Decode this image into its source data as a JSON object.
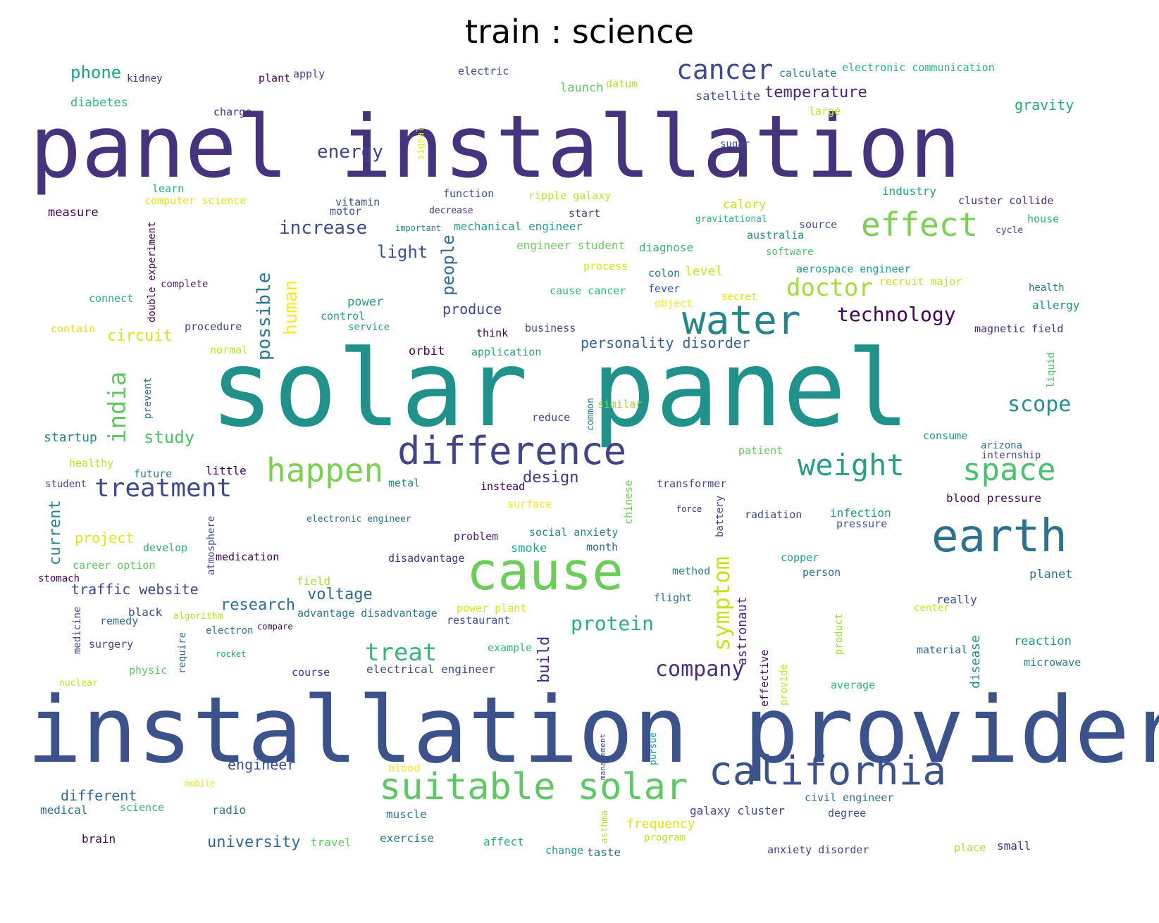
{
  "title": "train : science",
  "palette": "viridis",
  "words": [
    {
      "text": "solar panel",
      "color": "#21918c",
      "size": "xl"
    },
    {
      "text": "installation provider",
      "color": "#3b528b",
      "size": "xl"
    },
    {
      "text": "panel installation",
      "color": "#46337e",
      "size": "xl"
    },
    {
      "text": "cause",
      "color": "#6ccd5a",
      "size": "l"
    },
    {
      "text": "earth",
      "color": "#2c718e",
      "size": "l"
    },
    {
      "text": "water",
      "color": "#25858e",
      "size": "l"
    },
    {
      "text": "california",
      "color": "#3b528b",
      "size": "l"
    },
    {
      "text": "difference",
      "color": "#414487",
      "size": "m"
    },
    {
      "text": "suitable solar",
      "color": "#5ec962",
      "size": "m"
    },
    {
      "text": "happen",
      "color": "#7ad151",
      "size": "m"
    },
    {
      "text": "effect",
      "color": "#7ad151",
      "size": "m"
    },
    {
      "text": "weight",
      "color": "#2a9d8a",
      "size": "m"
    },
    {
      "text": "space",
      "color": "#4ac16d",
      "size": "m"
    },
    {
      "text": "cancer",
      "color": "#3e4a89",
      "size": "m"
    },
    {
      "text": "treatment",
      "color": "#3e4a89",
      "size": "m"
    },
    {
      "text": "india",
      "color": "#5ec962",
      "size": "m"
    },
    {
      "text": "doctor",
      "color": "#a5db36",
      "size": "m"
    },
    {
      "text": "treat",
      "color": "#35b779",
      "size": "m"
    },
    {
      "text": "symptom",
      "color": "#c8e020",
      "size": "m"
    },
    {
      "text": "protein",
      "color": "#29af7f",
      "size": "m"
    },
    {
      "text": "company",
      "color": "#472d7b",
      "size": "m"
    },
    {
      "text": "scope",
      "color": "#218f8d",
      "size": "m"
    },
    {
      "text": "technology",
      "color": "#440154",
      "size": "m"
    },
    {
      "text": "energy",
      "color": "#404588",
      "size": "s"
    },
    {
      "text": "increase",
      "color": "#3e4c8a",
      "size": "s"
    },
    {
      "text": "possible",
      "color": "#2a788e",
      "size": "s"
    },
    {
      "text": "human",
      "color": "#fde725",
      "size": "s"
    },
    {
      "text": "people",
      "color": "#2e6e8e",
      "size": "s"
    },
    {
      "text": "light",
      "color": "#3b528b",
      "size": "s"
    },
    {
      "text": "temperature",
      "color": "#482576",
      "size": "s"
    },
    {
      "text": "phone",
      "color": "#1f9e89",
      "size": "s"
    },
    {
      "text": "gravity",
      "color": "#22a884",
      "size": "s"
    },
    {
      "text": "personality disorder",
      "color": "#33638d",
      "size": "s"
    },
    {
      "text": "produce",
      "color": "#3e4989",
      "size": "s"
    },
    {
      "text": "circuit",
      "color": "#dde318",
      "size": "s"
    },
    {
      "text": "study",
      "color": "#4ac16d",
      "size": "s"
    },
    {
      "text": "design",
      "color": "#46327e",
      "size": "s"
    },
    {
      "text": "research",
      "color": "#2c728e",
      "size": "s"
    },
    {
      "text": "voltage",
      "color": "#2f6b8e",
      "size": "s"
    },
    {
      "text": "build",
      "color": "#482979",
      "size": "s"
    },
    {
      "text": "astronaut",
      "color": "#472a7a",
      "size": "s"
    },
    {
      "text": "university",
      "color": "#31688e",
      "size": "s"
    },
    {
      "text": "engineer",
      "color": "#3a538b",
      "size": "s"
    },
    {
      "text": "different",
      "color": "#31688e",
      "size": "s"
    },
    {
      "text": "current",
      "color": "#26828e",
      "size": "s"
    },
    {
      "text": "project",
      "color": "#e5e419",
      "size": "s"
    },
    {
      "text": "traffic website",
      "color": "#3e4989",
      "size": "s"
    },
    {
      "text": "disease",
      "color": "#238a8d",
      "size": "s"
    },
    {
      "text": "frequency",
      "color": "#dde318",
      "size": "s"
    },
    {
      "text": "kidney",
      "color": "#46327e",
      "size": "xs"
    },
    {
      "text": "plant",
      "color": "#440154",
      "size": "xs"
    },
    {
      "text": "apply",
      "color": "#414487",
      "size": "xs"
    },
    {
      "text": "electric",
      "color": "#3b528b",
      "size": "xs"
    },
    {
      "text": "calculate",
      "color": "#26828e",
      "size": "xs"
    },
    {
      "text": "electronic communication",
      "color": "#29af7f",
      "size": "xs"
    },
    {
      "text": "launch",
      "color": "#5ec962",
      "size": "xs"
    },
    {
      "text": "datum",
      "color": "#b5de2b",
      "size": "xs"
    },
    {
      "text": "satellite",
      "color": "#3b528b",
      "size": "xs"
    },
    {
      "text": "large",
      "color": "#c8e020",
      "size": "xs"
    },
    {
      "text": "diabetes",
      "color": "#35b779",
      "size": "xs"
    },
    {
      "text": "charge",
      "color": "#482878",
      "size": "xs"
    },
    {
      "text": "signal",
      "color": "#e5e419",
      "size": "xs"
    },
    {
      "text": "sugar",
      "color": "#3e4a89",
      "size": "xs"
    },
    {
      "text": "learn",
      "color": "#29af7f",
      "size": "xs"
    },
    {
      "text": "computer science",
      "color": "#e5e419",
      "size": "xs"
    },
    {
      "text": "function",
      "color": "#3b528b",
      "size": "xs"
    },
    {
      "text": "ripple galaxy",
      "color": "#bddf26",
      "size": "xs"
    },
    {
      "text": "industry",
      "color": "#1f9e89",
      "size": "xs"
    },
    {
      "text": "cluster collide",
      "color": "#482576",
      "size": "xs"
    },
    {
      "text": "vitamin",
      "color": "#3b528b",
      "size": "xs"
    },
    {
      "text": "motor",
      "color": "#3b528b",
      "size": "xs"
    },
    {
      "text": "decrease",
      "color": "#46337e",
      "size": "xs"
    },
    {
      "text": "start",
      "color": "#404588",
      "size": "xs"
    },
    {
      "text": "calory",
      "color": "#c8e020",
      "size": "xs"
    },
    {
      "text": "measure",
      "color": "#440154",
      "size": "xs"
    },
    {
      "text": "double experiment",
      "color": "#440154",
      "size": "xs"
    },
    {
      "text": "gravitational",
      "color": "#2db27d",
      "size": "xs"
    },
    {
      "text": "house",
      "color": "#2db27d",
      "size": "xs"
    },
    {
      "text": "important",
      "color": "#277f8e",
      "size": "xs"
    },
    {
      "text": "mechanical engineer",
      "color": "#2a9d8a",
      "size": "xs"
    },
    {
      "text": "source",
      "color": "#3b528b",
      "size": "xs"
    },
    {
      "text": "australia",
      "color": "#238a8d",
      "size": "xs"
    },
    {
      "text": "cycle",
      "color": "#3e4c8a",
      "size": "xs"
    },
    {
      "text": "engineer student",
      "color": "#6ccd5a",
      "size": "xs"
    },
    {
      "text": "diagnose",
      "color": "#35b779",
      "size": "xs"
    },
    {
      "text": "software",
      "color": "#4ac16d",
      "size": "xs"
    },
    {
      "text": "process",
      "color": "#dde318",
      "size": "xs"
    },
    {
      "text": "colon",
      "color": "#2a788e",
      "size": "xs"
    },
    {
      "text": "level",
      "color": "#c8e020",
      "size": "xs"
    },
    {
      "text": "aerospace engineer",
      "color": "#1f9e89",
      "size": "xs"
    },
    {
      "text": "complete",
      "color": "#481f70",
      "size": "xs"
    },
    {
      "text": "cause cancer",
      "color": "#35b779",
      "size": "xs"
    },
    {
      "text": "fever",
      "color": "#3b528b",
      "size": "xs"
    },
    {
      "text": "secret",
      "color": "#e5e419",
      "size": "xs"
    },
    {
      "text": "recruit major",
      "color": "#c2df23",
      "size": "xs"
    },
    {
      "text": "health",
      "color": "#2c728e",
      "size": "xs"
    },
    {
      "text": "connect",
      "color": "#29af7f",
      "size": "xs"
    },
    {
      "text": "power",
      "color": "#1f9e89",
      "size": "xs"
    },
    {
      "text": "object",
      "color": "#fde725",
      "size": "xs"
    },
    {
      "text": "allergy",
      "color": "#21918c",
      "size": "xs"
    },
    {
      "text": "control",
      "color": "#1f9e89",
      "size": "xs"
    },
    {
      "text": "contain",
      "color": "#dde318",
      "size": "xs"
    },
    {
      "text": "procedure",
      "color": "#3e4989",
      "size": "xs"
    },
    {
      "text": "service",
      "color": "#20a486",
      "size": "xs"
    },
    {
      "text": "think",
      "color": "#440154",
      "size": "xs"
    },
    {
      "text": "business",
      "color": "#3e4989",
      "size": "xs"
    },
    {
      "text": "magnetic field",
      "color": "#472d7b",
      "size": "xs"
    },
    {
      "text": "normal",
      "color": "#c8e020",
      "size": "xs"
    },
    {
      "text": "orbit",
      "color": "#440154",
      "size": "xs"
    },
    {
      "text": "application",
      "color": "#2a9d8a",
      "size": "xs"
    },
    {
      "text": "liquid",
      "color": "#4ac16d",
      "size": "xs"
    },
    {
      "text": "prevent",
      "color": "#2c728e",
      "size": "xs"
    },
    {
      "text": "reduce",
      "color": "#3e4a89",
      "size": "xs"
    },
    {
      "text": "common",
      "color": "#277f8e",
      "size": "xs"
    },
    {
      "text": "similar",
      "color": "#95d840",
      "size": "xs"
    },
    {
      "text": "startup",
      "color": "#25858e",
      "size": "xs"
    },
    {
      "text": "consume",
      "color": "#21918c",
      "size": "xs"
    },
    {
      "text": "arizona",
      "color": "#2c728e",
      "size": "xs"
    },
    {
      "text": "internship",
      "color": "#3e4989",
      "size": "xs"
    },
    {
      "text": "patient",
      "color": "#5ec962",
      "size": "xs"
    },
    {
      "text": "healthy",
      "color": "#c2df23",
      "size": "xs"
    },
    {
      "text": "future",
      "color": "#2a788e",
      "size": "xs"
    },
    {
      "text": "little",
      "color": "#440154",
      "size": "xs"
    },
    {
      "text": "student",
      "color": "#3e4a89",
      "size": "xs"
    },
    {
      "text": "metal",
      "color": "#25858e",
      "size": "xs"
    },
    {
      "text": "instead",
      "color": "#440154",
      "size": "xs"
    },
    {
      "text": "chinese",
      "color": "#6ccd5a",
      "size": "xs"
    },
    {
      "text": "transformer",
      "color": "#3e4a89",
      "size": "xs"
    },
    {
      "text": "blood pressure",
      "color": "#440154",
      "size": "xs"
    },
    {
      "text": "surface",
      "color": "#fde725",
      "size": "xs"
    },
    {
      "text": "force",
      "color": "#482576",
      "size": "xs"
    },
    {
      "text": "battery",
      "color": "#3e4989",
      "size": "xs"
    },
    {
      "text": "radiation",
      "color": "#3e4a89",
      "size": "xs"
    },
    {
      "text": "infection",
      "color": "#21918c",
      "size": "xs"
    },
    {
      "text": "pressure",
      "color": "#3b528b",
      "size": "xs"
    },
    {
      "text": "atmosphere",
      "color": "#3e4a89",
      "size": "xs"
    },
    {
      "text": "electronic engineer",
      "color": "#2c728e",
      "size": "xs"
    },
    {
      "text": "develop",
      "color": "#29af7f",
      "size": "xs"
    },
    {
      "text": "problem",
      "color": "#481f70",
      "size": "xs"
    },
    {
      "text": "social anxiety",
      "color": "#26828e",
      "size": "xs"
    },
    {
      "text": "smoke",
      "color": "#22a884",
      "size": "xs"
    },
    {
      "text": "month",
      "color": "#31688e",
      "size": "xs"
    },
    {
      "text": "career option",
      "color": "#5ec962",
      "size": "xs"
    },
    {
      "text": "medication",
      "color": "#440154",
      "size": "xs"
    },
    {
      "text": "disadvantage",
      "color": "#46327e",
      "size": "xs"
    },
    {
      "text": "copper",
      "color": "#1f9e89",
      "size": "xs"
    },
    {
      "text": "stomach",
      "color": "#440154",
      "size": "xs"
    },
    {
      "text": "field",
      "color": "#a5db36",
      "size": "xs"
    },
    {
      "text": "method",
      "color": "#25858e",
      "size": "xs"
    },
    {
      "text": "person",
      "color": "#2c728e",
      "size": "xs"
    },
    {
      "text": "planet",
      "color": "#2c728e",
      "size": "xs"
    },
    {
      "text": "flight",
      "color": "#2c728e",
      "size": "xs"
    },
    {
      "text": "black",
      "color": "#3e4989",
      "size": "xs"
    },
    {
      "text": "medicine",
      "color": "#3e4989",
      "size": "xs"
    },
    {
      "text": "remedy",
      "color": "#2c728e",
      "size": "xs"
    },
    {
      "text": "algorithm",
      "color": "#b5de2b",
      "size": "xs"
    },
    {
      "text": "advantage disadvantage",
      "color": "#2a788e",
      "size": "xs"
    },
    {
      "text": "power plant",
      "color": "#dde318",
      "size": "xs"
    },
    {
      "text": "center",
      "color": "#c8e020",
      "size": "xs"
    },
    {
      "text": "really",
      "color": "#3e4989",
      "size": "xs"
    },
    {
      "text": "electron",
      "color": "#2c728e",
      "size": "xs"
    },
    {
      "text": "compare",
      "color": "#440154",
      "size": "xs"
    },
    {
      "text": "restaurant",
      "color": "#3b528b",
      "size": "xs"
    },
    {
      "text": "product",
      "color": "#a5db36",
      "size": "xs"
    },
    {
      "text": "surgery",
      "color": "#3e4989",
      "size": "xs"
    },
    {
      "text": "require",
      "color": "#2c728e",
      "size": "xs"
    },
    {
      "text": "rocket",
      "color": "#22a884",
      "size": "xs"
    },
    {
      "text": "example",
      "color": "#35b779",
      "size": "xs"
    },
    {
      "text": "effective",
      "color": "#440154",
      "size": "xs"
    },
    {
      "text": "reaction",
      "color": "#21918c",
      "size": "xs"
    },
    {
      "text": "material",
      "color": "#31688e",
      "size": "xs"
    },
    {
      "text": "physic",
      "color": "#5ec962",
      "size": "xs"
    },
    {
      "text": "course",
      "color": "#46337e",
      "size": "xs"
    },
    {
      "text": "electrical engineer",
      "color": "#3e4989",
      "size": "xs"
    },
    {
      "text": "microwave",
      "color": "#2a788e",
      "size": "xs"
    },
    {
      "text": "nuclear",
      "color": "#c8e020",
      "size": "xs"
    },
    {
      "text": "provide",
      "color": "#c8e020",
      "size": "xs"
    },
    {
      "text": "average",
      "color": "#35b779",
      "size": "xs"
    },
    {
      "text": "management",
      "color": "#3e4989",
      "size": "xs"
    },
    {
      "text": "pursue",
      "color": "#20a486",
      "size": "xs"
    },
    {
      "text": "blood",
      "color": "#fde725",
      "size": "xs"
    },
    {
      "text": "mobile",
      "color": "#e5e419",
      "size": "xs"
    },
    {
      "text": "civil engineer",
      "color": "#2c728e",
      "size": "xs"
    },
    {
      "text": "medical",
      "color": "#2c728e",
      "size": "xs"
    },
    {
      "text": "science",
      "color": "#35b779",
      "size": "xs"
    },
    {
      "text": "radio",
      "color": "#2c728e",
      "size": "xs"
    },
    {
      "text": "muscle",
      "color": "#2c728e",
      "size": "xs"
    },
    {
      "text": "galaxy cluster",
      "color": "#3e4989",
      "size": "xs"
    },
    {
      "text": "degree",
      "color": "#3b528b",
      "size": "xs"
    },
    {
      "text": "asthma",
      "color": "#b5de2b",
      "size": "xs"
    },
    {
      "text": "program",
      "color": "#c2df23",
      "size": "xs"
    },
    {
      "text": "brain",
      "color": "#440154",
      "size": "xs"
    },
    {
      "text": "travel",
      "color": "#5ec962",
      "size": "xs"
    },
    {
      "text": "exercise",
      "color": "#2a788e",
      "size": "xs"
    },
    {
      "text": "affect",
      "color": "#29af7f",
      "size": "xs"
    },
    {
      "text": "change",
      "color": "#2a9d8a",
      "size": "xs"
    },
    {
      "text": "taste",
      "color": "#2c728e",
      "size": "xs"
    },
    {
      "text": "anxiety disorder",
      "color": "#3e4989",
      "size": "xs"
    },
    {
      "text": "place",
      "color": "#a5db36",
      "size": "xs"
    },
    {
      "text": "small",
      "color": "#472d7b",
      "size": "xs"
    }
  ]
}
